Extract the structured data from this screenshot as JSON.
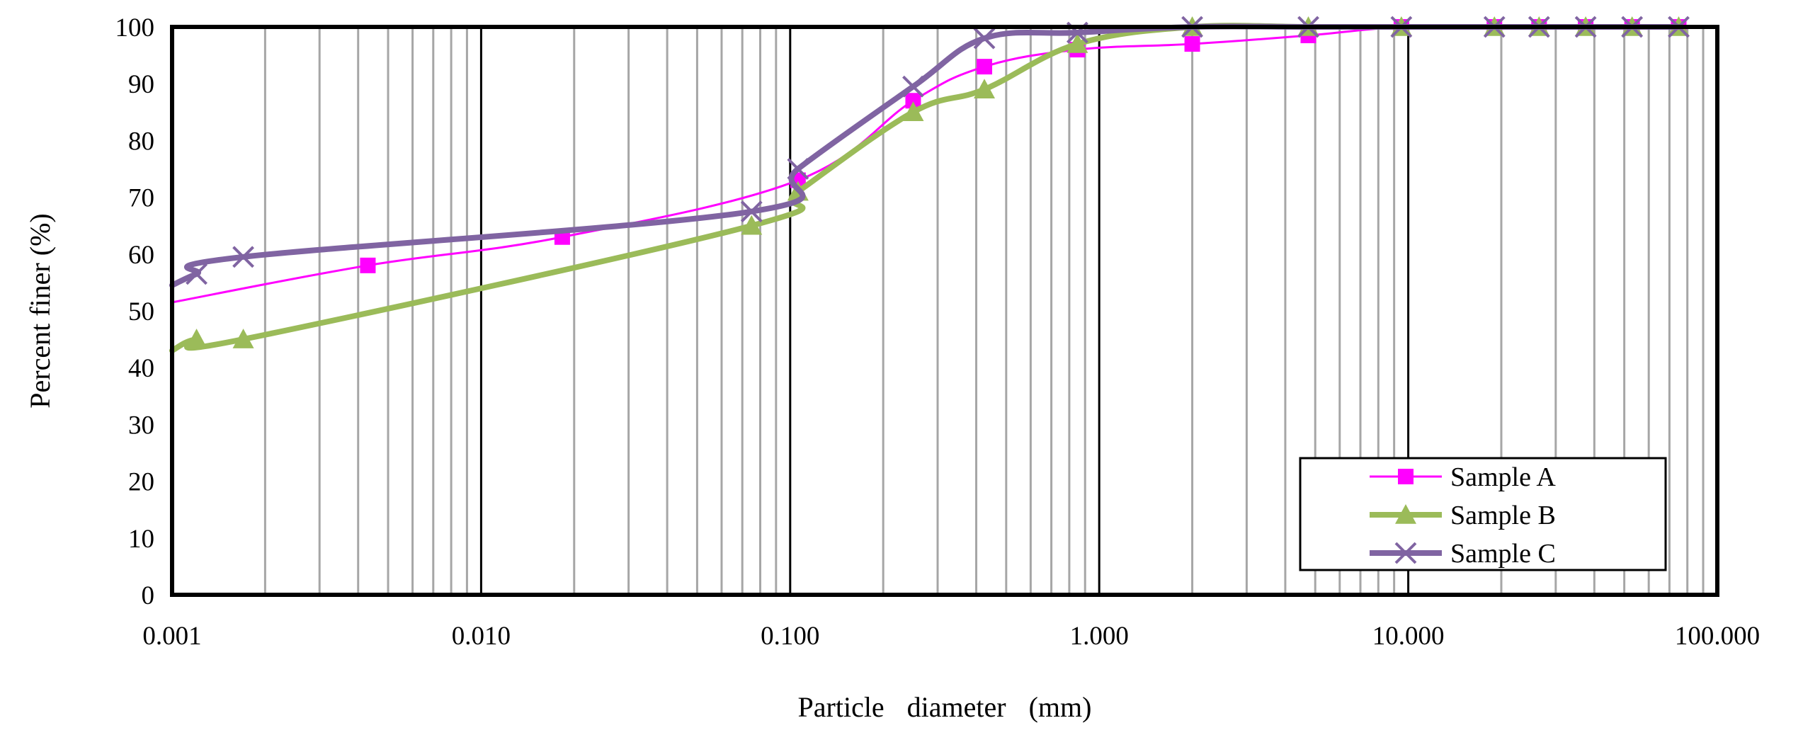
{
  "chart_data": {
    "type": "line",
    "title": "",
    "xlabel": "Particle diameter (mm)",
    "ylabel": "Percent finer (%)",
    "x_scale": "log",
    "xlim": [
      0.001,
      100
    ],
    "ylim": [
      0,
      100
    ],
    "x_ticks": [
      0.001,
      0.01,
      0.1,
      1,
      10,
      100
    ],
    "x_tick_labels": [
      "0.001",
      "0.010",
      "0.100",
      "1.000",
      "10.000",
      "100.000"
    ],
    "y_ticks": [
      0,
      10,
      20,
      30,
      40,
      50,
      60,
      70,
      80,
      90,
      100
    ],
    "y_tick_labels": [
      "0",
      "10",
      "20",
      "30",
      "40",
      "50",
      "60",
      "70",
      "80",
      "90",
      "100"
    ],
    "grid": {
      "x_major": true,
      "x_minor": true,
      "y": false
    },
    "legend": {
      "position": "bottom-right"
    },
    "series": [
      {
        "name": "Sample A",
        "color": "#ff00ff",
        "marker": "square",
        "line_width": "thin",
        "x": [
          0.0043,
          0.0183,
          0.106,
          0.25,
          0.425,
          0.85,
          2,
          4.75,
          9.5,
          19,
          26.5,
          37.5,
          53,
          75
        ],
        "y": [
          58,
          63,
          73,
          87,
          93,
          96,
          97,
          98.5,
          100,
          100,
          100,
          100,
          100,
          100
        ],
        "line_start": {
          "x": 0.001,
          "y": 51.5
        }
      },
      {
        "name": "Sample B",
        "color": "#9bbb59",
        "marker": "triangle",
        "line_width": "thick",
        "x": [
          0.0012,
          0.0017,
          0.075,
          0.106,
          0.25,
          0.425,
          0.85,
          2,
          4.75,
          9.5,
          19,
          26.5,
          37.5,
          53,
          75
        ],
        "y": [
          45,
          45,
          65,
          71,
          85,
          89,
          97,
          100,
          100,
          100,
          100,
          100,
          100,
          100,
          100
        ],
        "line_start": {
          "x": 0.001,
          "y": 43
        }
      },
      {
        "name": "Sample C",
        "color": "#8064a2",
        "marker": "x",
        "line_width": "thick",
        "x": [
          0.0012,
          0.0017,
          0.075,
          0.106,
          0.25,
          0.425,
          0.85,
          2,
          4.75,
          9.5,
          19,
          26.5,
          37.5,
          53,
          75
        ],
        "y": [
          56.5,
          59.5,
          67.5,
          75,
          89.5,
          98,
          99,
          100,
          100,
          100,
          100,
          100,
          100,
          100,
          100
        ],
        "line_start": {
          "x": 0.001,
          "y": 54.5
        }
      }
    ]
  }
}
